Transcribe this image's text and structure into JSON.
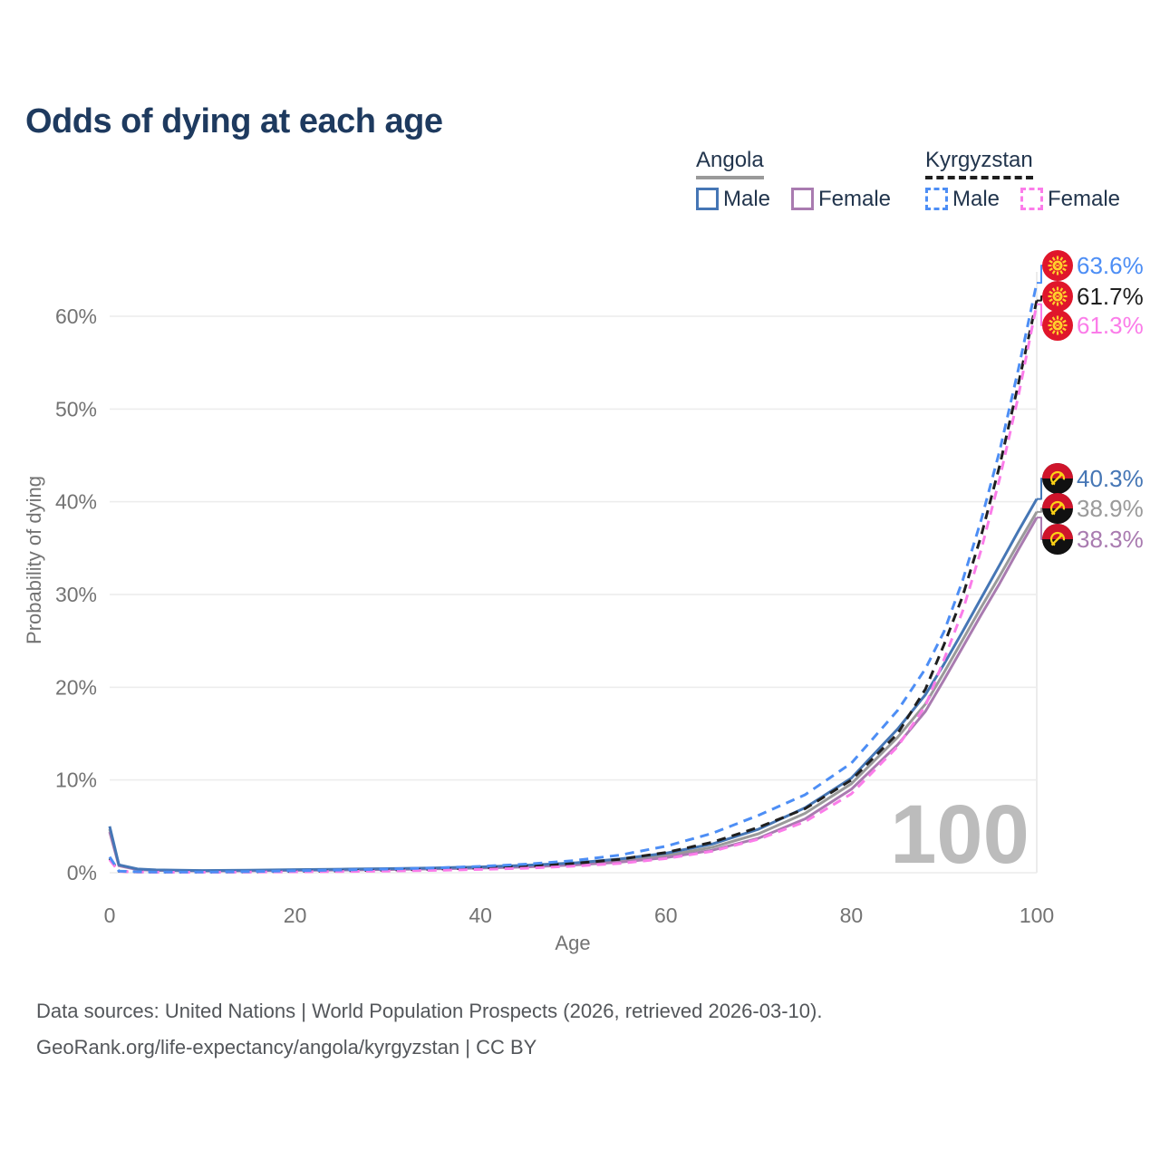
{
  "title": "Odds of dying at each age",
  "colors": {
    "angola_male": "#4576b5",
    "angola_female": "#a97bb0",
    "angola_both": "#9a9a9a",
    "kyrgyzstan_male": "#4d8ef5",
    "kyrgyzstan_female": "#fb7ce9",
    "kyrgyzstan_both": "#1f1f1f",
    "title_text": "#1e3a5f",
    "legend_text": "#22354d",
    "axis_text": "#737373",
    "grid": "#ececec",
    "watermark": "#bcbcbc",
    "source_text": "#53565a",
    "kyrgyzstan_flag_red": "#e0162b",
    "kyrgyzstan_flag_yellow": "#ffd12c",
    "angola_flag_red": "#cf142b",
    "angola_flag_black": "#111111",
    "angola_flag_yellow": "#fcd116"
  },
  "legend": {
    "groups": [
      {
        "country": "Angola",
        "line_style": "solid",
        "underline_color": "#9a9a9a",
        "items": [
          {
            "label": "Male",
            "color_key": "angola_male"
          },
          {
            "label": "Female",
            "color_key": "angola_female"
          }
        ]
      },
      {
        "country": "Kyrgyzstan",
        "line_style": "dashed",
        "underline_color": "#1f1f1f",
        "items": [
          {
            "label": "Male",
            "color_key": "kyrgyzstan_male"
          },
          {
            "label": "Female",
            "color_key": "kyrgyzstan_female"
          }
        ]
      }
    ]
  },
  "chart_data": {
    "type": "line",
    "title": "Odds of dying at each age",
    "xlabel": "Age",
    "ylabel": "Probability of dying",
    "xlim": [
      0,
      100
    ],
    "ylim_percent": [
      0,
      66
    ],
    "x_ticks": [
      0,
      20,
      40,
      60,
      80,
      100
    ],
    "y_ticks_percent": [
      0,
      10,
      20,
      30,
      40,
      50,
      60
    ],
    "grid": "horizontal",
    "legend_position": "top-right",
    "hover_age_label": "100",
    "ages": [
      0,
      1,
      3,
      5,
      10,
      15,
      20,
      25,
      30,
      35,
      40,
      45,
      50,
      55,
      60,
      65,
      70,
      75,
      80,
      85,
      88,
      90,
      92,
      94,
      96,
      98,
      100
    ],
    "series": [
      {
        "key": "angola_both",
        "name": "Angola Both sexes",
        "country": "Angola",
        "sex": "Both",
        "dash": "solid",
        "end_label": "38.9%",
        "values_percent": [
          4.7,
          0.8,
          0.36,
          0.27,
          0.21,
          0.23,
          0.29,
          0.33,
          0.39,
          0.46,
          0.56,
          0.71,
          0.94,
          1.3,
          1.85,
          2.75,
          4.2,
          6.4,
          9.6,
          14.6,
          18.2,
          21.6,
          25.1,
          28.6,
          32.0,
          35.5,
          38.9
        ]
      },
      {
        "key": "angola_female",
        "name": "Angola Female",
        "country": "Angola",
        "sex": "Female",
        "dash": "solid",
        "end_label": "38.3%",
        "values_percent": [
          4.4,
          0.75,
          0.33,
          0.25,
          0.19,
          0.21,
          0.25,
          0.29,
          0.34,
          0.41,
          0.5,
          0.63,
          0.83,
          1.13,
          1.62,
          2.42,
          3.72,
          5.8,
          9.0,
          13.8,
          17.4,
          20.8,
          24.3,
          27.8,
          31.2,
          34.8,
          38.3
        ]
      },
      {
        "key": "angola_male",
        "name": "Angola Male",
        "country": "Angola",
        "sex": "Male",
        "dash": "solid",
        "end_label": "40.3%",
        "values_percent": [
          5.0,
          0.85,
          0.4,
          0.3,
          0.23,
          0.26,
          0.33,
          0.38,
          0.44,
          0.52,
          0.63,
          0.8,
          1.05,
          1.48,
          2.1,
          3.1,
          4.7,
          7.0,
          10.2,
          15.5,
          19.2,
          22.5,
          26.0,
          29.6,
          33.2,
          36.8,
          40.3
        ]
      },
      {
        "key": "kyrgyzstan_both",
        "name": "Kyrgyzstan Both sexes",
        "country": "Kyrgyzstan",
        "sex": "Both",
        "dash": "dashed",
        "end_label": "61.7%",
        "values_percent": [
          1.55,
          0.16,
          0.09,
          0.07,
          0.06,
          0.09,
          0.15,
          0.21,
          0.28,
          0.38,
          0.51,
          0.7,
          0.99,
          1.45,
          2.18,
          3.28,
          4.9,
          6.9,
          10.0,
          15.0,
          19.8,
          24.6,
          29.8,
          36.3,
          43.9,
          52.6,
          61.7
        ]
      },
      {
        "key": "kyrgyzstan_female",
        "name": "Kyrgyzstan Female",
        "country": "Kyrgyzstan",
        "sex": "Female",
        "dash": "dashed",
        "end_label": "61.3%",
        "values_percent": [
          1.4,
          0.14,
          0.08,
          0.06,
          0.05,
          0.07,
          0.1,
          0.13,
          0.18,
          0.25,
          0.35,
          0.49,
          0.7,
          1.0,
          1.52,
          2.32,
          3.62,
          5.5,
          8.5,
          13.6,
          18.0,
          23.0,
          28.2,
          34.8,
          42.5,
          51.3,
          61.3
        ]
      },
      {
        "key": "kyrgyzstan_male",
        "name": "Kyrgyzstan Male",
        "country": "Kyrgyzstan",
        "sex": "Male",
        "dash": "dashed",
        "end_label": "63.6%",
        "values_percent": [
          1.7,
          0.18,
          0.1,
          0.08,
          0.07,
          0.12,
          0.21,
          0.29,
          0.39,
          0.52,
          0.68,
          0.93,
          1.3,
          1.9,
          2.85,
          4.25,
          6.2,
          8.4,
          11.8,
          17.5,
          22.0,
          26.0,
          31.5,
          38.0,
          45.5,
          54.2,
          63.6
        ]
      }
    ]
  },
  "end_labels": [
    {
      "series": "kyrgyzstan_male",
      "text": "63.6%",
      "flag": "kyrgyzstan"
    },
    {
      "series": "kyrgyzstan_both",
      "text": "61.7%",
      "flag": "kyrgyzstan"
    },
    {
      "series": "kyrgyzstan_female",
      "text": "61.3%",
      "flag": "kyrgyzstan"
    },
    {
      "series": "angola_male",
      "text": "40.3%",
      "flag": "angola"
    },
    {
      "series": "angola_both",
      "text": "38.9%",
      "flag": "angola"
    },
    {
      "series": "angola_female",
      "text": "38.3%",
      "flag": "angola"
    }
  ],
  "source": {
    "line1": "Data sources: United Nations | World Population Prospects (2026, retrieved 2026-03-10).",
    "line2": "GeoRank.org/life-expectancy/angola/kyrgyzstan | CC BY"
  }
}
